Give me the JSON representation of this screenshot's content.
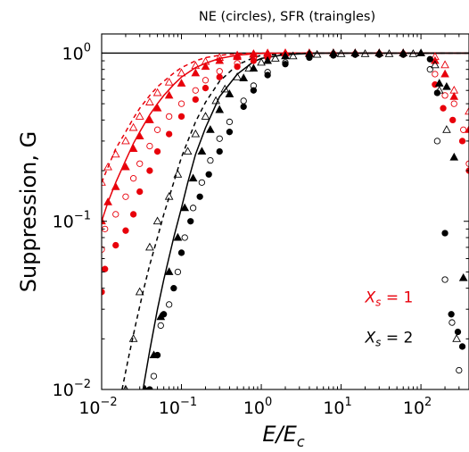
{
  "chart_data": {
    "type": "scatter",
    "title": "NE (circles),   SFR (traingles)",
    "xlabel": "E/E",
    "xlabel_sub": "c",
    "ylabel": "Suppression, G",
    "xscale": "log",
    "yscale": "log",
    "xlim": [
      0.01,
      400
    ],
    "ylim": [
      0.01,
      1.3
    ],
    "x_ticks": [
      {
        "value": 0.01,
        "base": "10",
        "exp": "−2"
      },
      {
        "value": 0.1,
        "base": "10",
        "exp": "−1"
      },
      {
        "value": 1,
        "base": "10",
        "exp": "0"
      },
      {
        "value": 10,
        "base": "10",
        "exp": "1"
      },
      {
        "value": 100,
        "base": "10",
        "exp": "2"
      }
    ],
    "y_ticks": [
      {
        "value": 0.01,
        "base": "10",
        "exp": "−2"
      },
      {
        "value": 0.1,
        "base": "10",
        "exp": "−1"
      },
      {
        "value": 1,
        "base": "10",
        "exp": "0"
      }
    ],
    "annotations": [
      {
        "var": "X",
        "sub": "s",
        "rest": " = 1",
        "color": "#e8000b",
        "x": 20,
        "y": 0.033
      },
      {
        "var": "X",
        "sub": "s",
        "rest": " = 2",
        "color": "#000000",
        "x": 20,
        "y": 0.019
      }
    ],
    "lines": [
      {
        "name": "",
        "color": "#e8000b",
        "dash": "",
        "x": [
          0.01,
          0.012,
          0.015,
          0.02,
          0.025,
          0.03,
          0.04,
          0.05,
          0.06,
          0.08,
          0.1,
          0.15,
          0.2,
          0.3,
          0.5,
          0.8,
          1,
          2,
          5,
          10,
          20,
          50,
          100,
          400
        ],
        "y": [
          0.1,
          0.13,
          0.17,
          0.23,
          0.29,
          0.34,
          0.43,
          0.5,
          0.56,
          0.65,
          0.72,
          0.82,
          0.87,
          0.93,
          0.97,
          0.99,
          0.995,
          1,
          1,
          1,
          1,
          1,
          1,
          1
        ]
      },
      {
        "name": "",
        "color": "#e8000b",
        "dash": "5,4",
        "x": [
          0.01,
          0.012,
          0.015,
          0.02,
          0.025,
          0.03,
          0.04,
          0.05,
          0.06,
          0.08,
          0.1,
          0.15,
          0.2,
          0.3,
          0.5,
          0.8,
          1,
          2,
          5,
          10,
          20,
          50,
          100,
          400
        ],
        "y": [
          0.17,
          0.21,
          0.27,
          0.34,
          0.41,
          0.47,
          0.56,
          0.63,
          0.68,
          0.76,
          0.82,
          0.9,
          0.94,
          0.97,
          0.99,
          1,
          1,
          1,
          1,
          1,
          1,
          1,
          1,
          1
        ]
      },
      {
        "name": "",
        "color": "#000000",
        "dash": "",
        "x": [
          0.033,
          0.04,
          0.05,
          0.06,
          0.08,
          0.1,
          0.12,
          0.15,
          0.2,
          0.3,
          0.5,
          0.8,
          1,
          2,
          5,
          10,
          20,
          50,
          100,
          400
        ],
        "y": [
          0.01,
          0.017,
          0.03,
          0.045,
          0.08,
          0.12,
          0.17,
          0.25,
          0.36,
          0.55,
          0.75,
          0.89,
          0.93,
          0.98,
          1,
          1,
          1,
          1,
          1,
          1
        ]
      },
      {
        "name": "",
        "color": "#000000",
        "dash": "5,4",
        "x": [
          0.018,
          0.022,
          0.027,
          0.033,
          0.04,
          0.05,
          0.06,
          0.08,
          0.1,
          0.12,
          0.15,
          0.2,
          0.3,
          0.5,
          0.8,
          1,
          2,
          5,
          10,
          20,
          50,
          100,
          400
        ],
        "y": [
          0.01,
          0.016,
          0.025,
          0.038,
          0.055,
          0.08,
          0.11,
          0.17,
          0.24,
          0.3,
          0.39,
          0.51,
          0.68,
          0.85,
          0.94,
          0.97,
          0.99,
          1,
          1,
          1,
          1,
          1,
          1
        ]
      }
    ],
    "series": [
      {
        "name": "",
        "color": "#e8000b",
        "marker": "circle",
        "fill": true,
        "x": [
          0.01,
          0.011,
          0.015,
          0.02,
          0.025,
          0.03,
          0.04,
          0.05,
          0.07,
          0.1,
          0.15,
          0.2,
          0.3,
          0.5,
          0.8,
          1.2,
          2,
          4,
          8,
          15,
          30,
          60,
          150,
          190,
          250,
          330,
          400
        ],
        "y": [
          0.038,
          0.052,
          0.072,
          0.088,
          0.11,
          0.15,
          0.2,
          0.26,
          0.33,
          0.42,
          0.53,
          0.62,
          0.72,
          0.83,
          0.9,
          0.94,
          0.97,
          0.98,
          0.98,
          0.98,
          0.98,
          0.98,
          0.65,
          0.47,
          0.4,
          0.3,
          0.2
        ]
      },
      {
        "name": "",
        "color": "#e8000b",
        "marker": "circle",
        "fill": false,
        "x": [
          0.01,
          0.011,
          0.015,
          0.02,
          0.025,
          0.03,
          0.04,
          0.05,
          0.07,
          0.1,
          0.15,
          0.2,
          0.3,
          0.5,
          0.8,
          1.2,
          2,
          4,
          8,
          15,
          30,
          60,
          150,
          200,
          260,
          340,
          400
        ],
        "y": [
          0.068,
          0.09,
          0.11,
          0.14,
          0.18,
          0.22,
          0.28,
          0.35,
          0.42,
          0.5,
          0.6,
          0.69,
          0.78,
          0.87,
          0.93,
          0.96,
          0.98,
          0.99,
          0.99,
          0.99,
          0.99,
          0.99,
          0.75,
          0.56,
          0.5,
          0.35,
          0.22
        ]
      },
      {
        "name": "",
        "color": "#e8000b",
        "marker": "triangle",
        "fill": true,
        "x": [
          0.01,
          0.012,
          0.015,
          0.02,
          0.025,
          0.03,
          0.04,
          0.05,
          0.07,
          0.1,
          0.15,
          0.2,
          0.3,
          0.5,
          0.8,
          1.2,
          2,
          4,
          8,
          15,
          30,
          60,
          150,
          200,
          260,
          400
        ],
        "y": [
          0.1,
          0.13,
          0.16,
          0.21,
          0.27,
          0.32,
          0.4,
          0.47,
          0.56,
          0.66,
          0.76,
          0.83,
          0.9,
          0.95,
          0.98,
          0.99,
          1,
          1,
          1,
          1,
          1,
          1,
          0.9,
          0.75,
          0.55,
          0.35
        ]
      },
      {
        "name": "",
        "color": "#e8000b",
        "marker": "triangle",
        "fill": false,
        "x": [
          0.01,
          0.012,
          0.015,
          0.02,
          0.025,
          0.03,
          0.04,
          0.05,
          0.07,
          0.1,
          0.15,
          0.2,
          0.3,
          0.5,
          0.8,
          1.2,
          2,
          4,
          8,
          15,
          30,
          60,
          150,
          200,
          260,
          400
        ],
        "y": [
          0.17,
          0.21,
          0.25,
          0.3,
          0.36,
          0.42,
          0.51,
          0.58,
          0.67,
          0.76,
          0.84,
          0.89,
          0.94,
          0.97,
          0.99,
          1,
          1,
          1,
          1,
          1,
          1,
          1,
          0.95,
          0.85,
          0.6,
          0.45
        ]
      },
      {
        "name": "",
        "color": "#000000",
        "marker": "circle",
        "fill": true,
        "x": [
          0.04,
          0.05,
          0.06,
          0.08,
          0.1,
          0.13,
          0.17,
          0.22,
          0.3,
          0.4,
          0.6,
          0.8,
          1.2,
          2,
          4,
          8,
          15,
          30,
          60,
          130,
          160,
          200,
          240,
          290,
          330
        ],
        "y": [
          0.01,
          0.016,
          0.028,
          0.04,
          0.065,
          0.1,
          0.14,
          0.19,
          0.26,
          0.34,
          0.48,
          0.6,
          0.74,
          0.86,
          0.94,
          0.97,
          0.98,
          0.98,
          0.98,
          0.92,
          0.58,
          0.085,
          0.028,
          0.022,
          0.018
        ]
      },
      {
        "name": "",
        "color": "#000000",
        "marker": "circle",
        "fill": false,
        "x": [
          0.045,
          0.055,
          0.07,
          0.09,
          0.11,
          0.14,
          0.18,
          0.23,
          0.3,
          0.4,
          0.6,
          0.8,
          1.2,
          2,
          4,
          8,
          15,
          30,
          60,
          130,
          160,
          200,
          245,
          300
        ],
        "y": [
          0.012,
          0.024,
          0.032,
          0.05,
          0.08,
          0.12,
          0.17,
          0.23,
          0.31,
          0.39,
          0.52,
          0.64,
          0.77,
          0.88,
          0.95,
          0.97,
          0.98,
          0.98,
          0.98,
          0.8,
          0.3,
          0.045,
          0.025,
          0.013
        ]
      },
      {
        "name": "",
        "color": "#000000",
        "marker": "triangle",
        "fill": true,
        "x": [
          0.035,
          0.045,
          0.055,
          0.07,
          0.09,
          0.11,
          0.14,
          0.18,
          0.23,
          0.3,
          0.4,
          0.6,
          0.8,
          1.2,
          2,
          4,
          8,
          15,
          30,
          60,
          100,
          170,
          210,
          260,
          340
        ],
        "y": [
          0.01,
          0.016,
          0.027,
          0.05,
          0.08,
          0.12,
          0.18,
          0.26,
          0.35,
          0.46,
          0.57,
          0.71,
          0.81,
          0.9,
          0.96,
          0.99,
          1,
          1,
          1,
          1,
          1,
          0.66,
          0.63,
          0.24,
          0.046
        ]
      },
      {
        "name": "",
        "color": "#000000",
        "marker": "triangle",
        "fill": false,
        "x": [
          0.02,
          0.025,
          0.03,
          0.04,
          0.05,
          0.07,
          0.09,
          0.12,
          0.15,
          0.2,
          0.27,
          0.35,
          0.5,
          0.7,
          1,
          1.5,
          2.5,
          5,
          10,
          20,
          40,
          80,
          150,
          170,
          210,
          280
        ],
        "y": [
          0.01,
          0.02,
          0.038,
          0.07,
          0.1,
          0.14,
          0.19,
          0.26,
          0.33,
          0.42,
          0.52,
          0.61,
          0.72,
          0.81,
          0.88,
          0.93,
          0.96,
          0.98,
          0.99,
          0.99,
          0.99,
          0.99,
          0.85,
          0.6,
          0.35,
          0.02
        ]
      }
    ],
    "reference_line": {
      "y": 1.0,
      "color": "#000000"
    },
    "grid": false,
    "legend": "none"
  }
}
